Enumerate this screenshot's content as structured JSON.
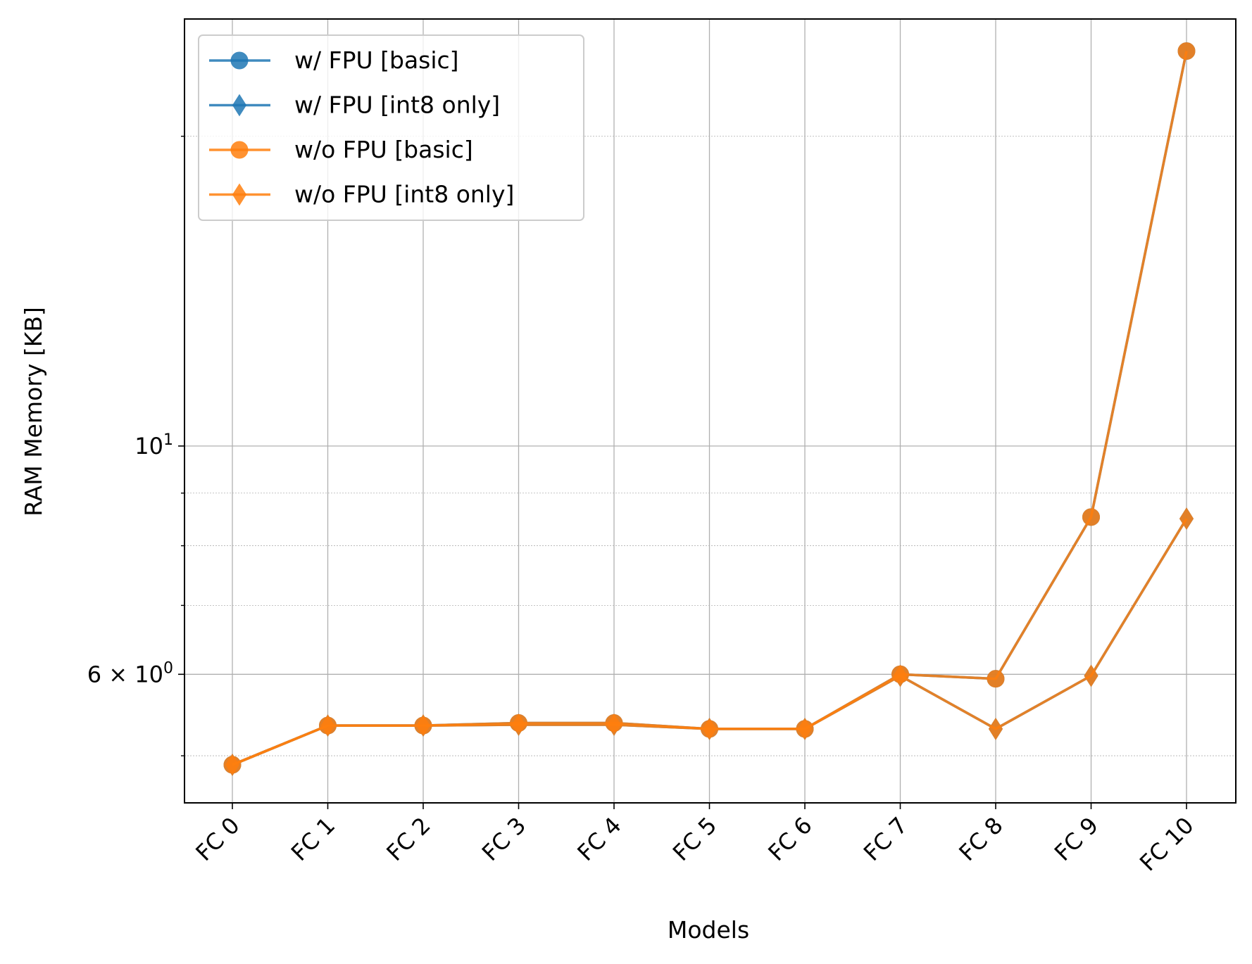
{
  "chart_data": {
    "type": "line",
    "xlabel": "Models",
    "ylabel": "RAM Memory [KB]",
    "yscale": "log",
    "ylim": [
      4.5,
      26.0
    ],
    "grid": true,
    "legend_position": "top-left",
    "categories": [
      "FC 0",
      "FC 1",
      "FC 2",
      "FC 3",
      "FC 4",
      "FC 5",
      "FC 6",
      "FC 7",
      "FC 8",
      "FC 9",
      "FC 10"
    ],
    "y_ticks": [
      {
        "value": 10,
        "base": "10",
        "exp": "1"
      },
      {
        "value": 6,
        "coef": "6",
        "times": "×",
        "base": "10",
        "exp": "0"
      }
    ],
    "series": [
      {
        "name": "w/ FPU [basic]",
        "marker": "circle",
        "color": "#1f77b4",
        "values": [
          4.9,
          5.35,
          5.35,
          5.38,
          5.38,
          5.31,
          5.31,
          6.0,
          5.94,
          8.53,
          24.2
        ]
      },
      {
        "name": "w/ FPU [int8 only]",
        "marker": "diamond",
        "color": "#1f77b4",
        "values": [
          4.9,
          5.35,
          5.35,
          5.36,
          5.36,
          5.31,
          5.31,
          5.98,
          5.31,
          5.98,
          8.5
        ]
      },
      {
        "name": "w/o FPU [basic]",
        "marker": "circle",
        "color": "#ff7f0e",
        "values": [
          4.9,
          5.35,
          5.35,
          5.38,
          5.38,
          5.31,
          5.31,
          6.0,
          5.94,
          8.53,
          24.2
        ]
      },
      {
        "name": "w/o FPU [int8 only]",
        "marker": "diamond",
        "color": "#ff7f0e",
        "values": [
          4.9,
          5.35,
          5.35,
          5.36,
          5.36,
          5.31,
          5.31,
          5.98,
          5.31,
          5.98,
          8.5
        ]
      }
    ]
  }
}
